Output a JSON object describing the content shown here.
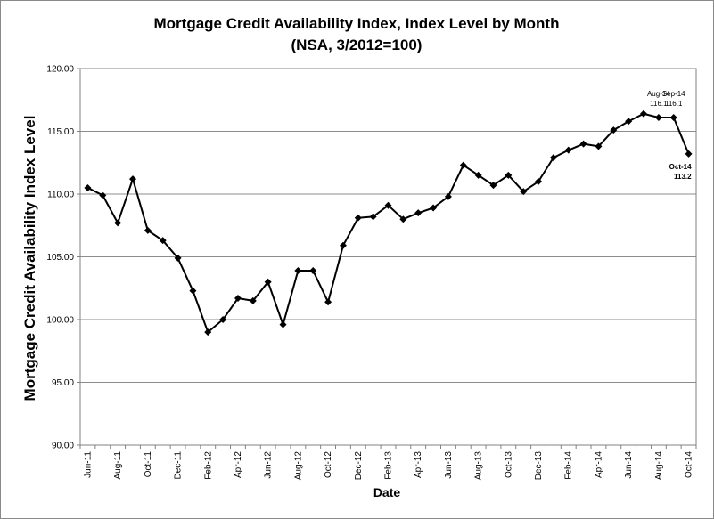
{
  "chart_data": {
    "type": "line",
    "title": "Mortgage Credit Availability Index, Index Level by Month",
    "subtitle": "(NSA, 3/2012=100)",
    "xlabel": "Date",
    "ylabel": "Mortgage Credit Availability Index Level",
    "ylim": [
      90,
      120
    ],
    "ytick_values": [
      90,
      95,
      100,
      105,
      110,
      115,
      120
    ],
    "ytick_labels": [
      "90.00",
      "95.00",
      "100.00",
      "105.00",
      "110.00",
      "115.00",
      "120.00"
    ],
    "grid": "horizontal",
    "legend": "none",
    "line_color": "#000000",
    "x": [
      "Jun-11",
      "Jul-11",
      "Aug-11",
      "Sep-11",
      "Oct-11",
      "Nov-11",
      "Dec-11",
      "Jan-12",
      "Feb-12",
      "Mar-12",
      "Apr-12",
      "May-12",
      "Jun-12",
      "Jul-12",
      "Aug-12",
      "Sep-12",
      "Oct-12",
      "Nov-12",
      "Dec-12",
      "Jan-13",
      "Feb-13",
      "Mar-13",
      "Apr-13",
      "May-13",
      "Jun-13",
      "Jul-13",
      "Aug-13",
      "Sep-13",
      "Oct-13",
      "Nov-13",
      "Dec-13",
      "Jan-14",
      "Feb-14",
      "Mar-14",
      "Apr-14",
      "May-14",
      "Jun-14",
      "Jul-14",
      "Aug-14",
      "Sep-14",
      "Oct-14"
    ],
    "xtick_labels": [
      "Jun-11",
      "Aug-11",
      "Oct-11",
      "Dec-11",
      "Feb-12",
      "Apr-12",
      "Jun-12",
      "Aug-12",
      "Oct-12",
      "Dec-12",
      "Feb-13",
      "Apr-13",
      "Jun-13",
      "Aug-13",
      "Oct-13",
      "Dec-13",
      "Feb-14",
      "Apr-14",
      "Jun-14",
      "Aug-14",
      "Oct-14"
    ],
    "series": [
      {
        "values": [
          110.5,
          109.9,
          107.7,
          111.2,
          107.1,
          106.3,
          104.9,
          102.3,
          99.0,
          100.0,
          101.7,
          101.5,
          103.0,
          99.6,
          103.9,
          103.9,
          101.4,
          105.9,
          108.1,
          108.2,
          109.1,
          108.0,
          108.5,
          108.9,
          109.8,
          112.3,
          111.5,
          110.7,
          111.5,
          110.2,
          111.0,
          112.9,
          113.5,
          114.0,
          113.8,
          115.1,
          115.8,
          116.4,
          116.1,
          116.1,
          113.2
        ]
      }
    ],
    "annotations": [
      {
        "x": "Aug-14",
        "lines": [
          "Aug-14",
          "116.1"
        ],
        "bold": false
      },
      {
        "x": "Sep-14",
        "lines": [
          "Sep-14",
          "116.1"
        ],
        "bold": false
      },
      {
        "x": "Oct-14",
        "lines": [
          "Oct-14",
          "113.2"
        ],
        "bold": true
      }
    ]
  }
}
